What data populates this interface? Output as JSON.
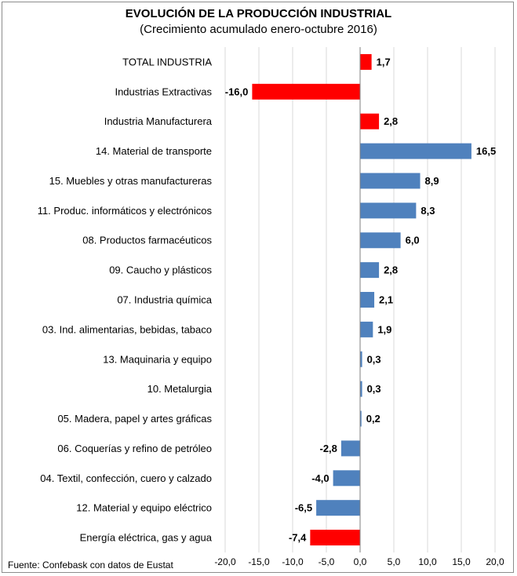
{
  "chart_data": {
    "type": "bar",
    "orientation": "horizontal",
    "title": "EVOLUCIÓN DE LA PRODUCCIÓN INDUSTRIAL",
    "subtitle": "(Crecimiento acumulado enero-octubre 2016)",
    "source": "Fuente: Confebask con datos de Eustat",
    "xlim": [
      -20,
      20
    ],
    "x_ticks": [
      "-20,0",
      "-15,0",
      "-10,0",
      "-5,0",
      "0,0",
      "5,0",
      "10,0",
      "15,0",
      "20,0"
    ],
    "grid": "vertical",
    "colors": {
      "highlight": "#ff0000",
      "sector": "#4f81bd"
    },
    "categories": [
      "TOTAL INDUSTRIA",
      "Industrias Extractivas",
      "Industria Manufacturera",
      "14. Material de transporte",
      "15. Muebles y otras manufactureras",
      "11. Produc. informáticos y electrónicos",
      "08. Productos farmacéuticos",
      "09. Caucho y plásticos",
      "07. Industria química",
      "03. Ind. alimentarias, bebidas, tabaco",
      "13. Maquinaria y equipo",
      "10. Metalurgia",
      "05. Madera, papel y artes gráficas",
      "06. Coquerías y refino de petróleo",
      "04. Textil, confección, cuero y calzado",
      "12. Material y equipo eléctrico",
      "Energía eléctrica, gas y agua"
    ],
    "values": [
      1.7,
      -16.0,
      2.8,
      16.5,
      8.9,
      8.3,
      6.0,
      2.8,
      2.1,
      1.9,
      0.3,
      0.3,
      0.2,
      -2.8,
      -4.0,
      -6.5,
      -7.4
    ],
    "value_labels": [
      "1,7",
      "-16,0",
      "2,8",
      "16,5",
      "8,9",
      "8,3",
      "6,0",
      "2,8",
      "2,1",
      "1,9",
      "0,3",
      "0,3",
      "0,2",
      "-2,8",
      "-4,0",
      "-6,5",
      "-7,4"
    ],
    "highlighted": [
      true,
      true,
      true,
      false,
      false,
      false,
      false,
      false,
      false,
      false,
      false,
      false,
      false,
      false,
      false,
      false,
      true
    ]
  }
}
